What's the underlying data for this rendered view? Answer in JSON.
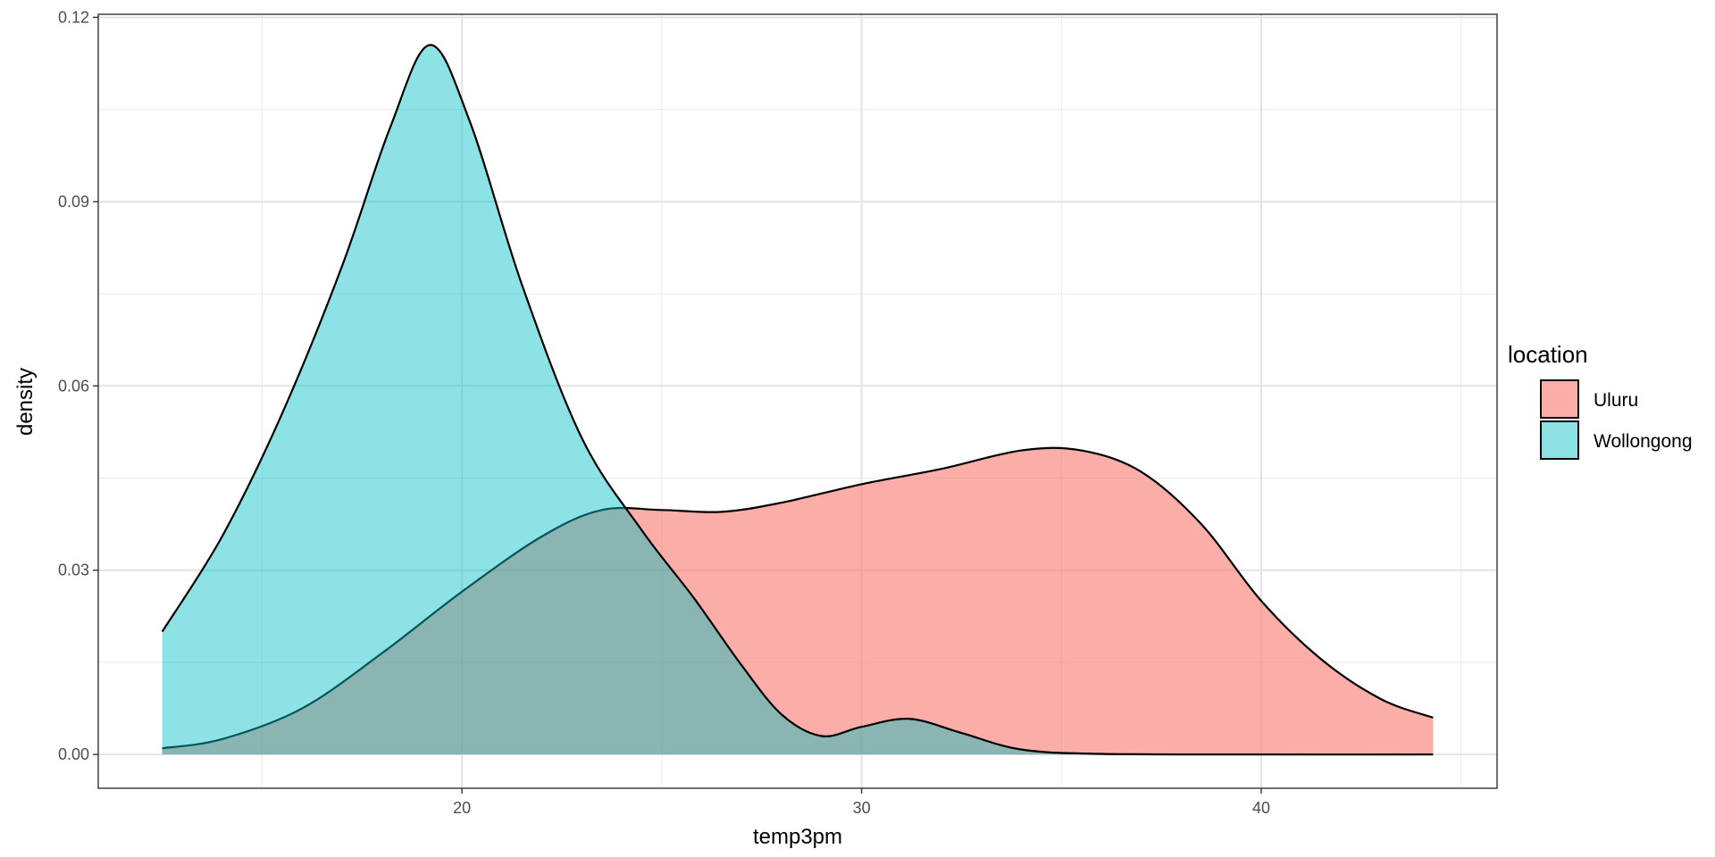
{
  "chart_data": {
    "type": "area",
    "subtype": "density",
    "title": "",
    "xlabel": "temp3pm",
    "ylabel": "density",
    "xlim": [
      10.9,
      45.9
    ],
    "ylim": [
      -0.0055,
      0.1205
    ],
    "x_major_ticks": [
      20,
      30,
      40
    ],
    "x_minor_ticks": [
      15,
      25,
      35,
      45
    ],
    "y_major_ticks": [
      0.0,
      0.03,
      0.06,
      0.09,
      0.12
    ],
    "y_minor_ticks": [
      0.015,
      0.045,
      0.075,
      0.105
    ],
    "y_tick_labels": [
      "0.00",
      "0.03",
      "0.06",
      "0.09",
      "0.12"
    ],
    "x_tick_labels": [
      "20",
      "30",
      "40"
    ],
    "grid": true,
    "legend": {
      "title": "location",
      "position": "right",
      "entries": [
        "Uluru",
        "Wollongong"
      ]
    },
    "series": [
      {
        "name": "Uluru",
        "color": "#F8766D",
        "fill_opacity": 0.6,
        "x": [
          12.5,
          14,
          16,
          18,
          20,
          22,
          23.5,
          25,
          26.5,
          28,
          30,
          32,
          34,
          35.5,
          37,
          38.5,
          40,
          41.5,
          43,
          44.3
        ],
        "y": [
          0.001,
          0.0025,
          0.0075,
          0.0165,
          0.0265,
          0.0355,
          0.0398,
          0.0398,
          0.0395,
          0.041,
          0.044,
          0.0465,
          0.0495,
          0.0495,
          0.046,
          0.0375,
          0.025,
          0.0155,
          0.009,
          0.006
        ]
      },
      {
        "name": "Wollongong",
        "color": "#00BFC4",
        "fill_opacity": 0.45,
        "x": [
          12.5,
          14,
          15.5,
          17,
          18.2,
          19.2,
          20.2,
          21.5,
          23,
          24.5,
          25.8,
          27,
          28,
          29,
          30,
          31.2,
          32.5,
          34,
          36,
          40,
          44.3
        ],
        "y": [
          0.02,
          0.0355,
          0.0555,
          0.0795,
          0.102,
          0.1155,
          0.103,
          0.0765,
          0.0515,
          0.0365,
          0.0255,
          0.0145,
          0.0065,
          0.003,
          0.0045,
          0.0058,
          0.0035,
          0.0008,
          0.0001,
          0.0,
          0.0
        ]
      }
    ]
  }
}
